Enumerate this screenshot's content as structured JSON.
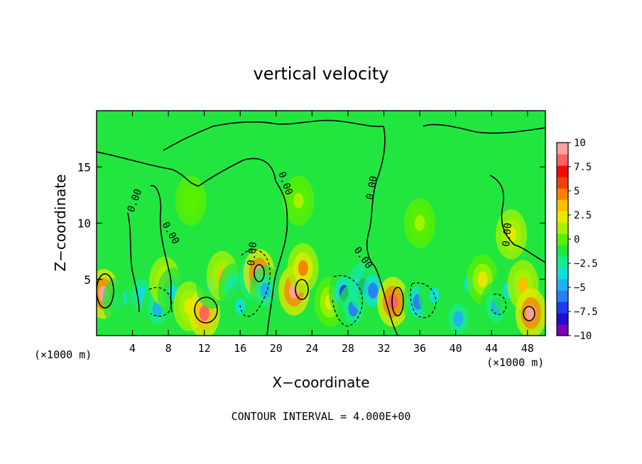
{
  "chart_data": {
    "type": "heatmap",
    "title": "vertical velocity",
    "xlabel": "X−coordinate",
    "ylabel": "Z−coordinate",
    "x_unit_left": "(×1000 m)",
    "x_unit_right": "(×1000 m)",
    "xlim": [
      0,
      50
    ],
    "ylim": [
      0,
      20
    ],
    "xticks": [
      4,
      8,
      12,
      16,
      20,
      24,
      28,
      32,
      36,
      40,
      44,
      48
    ],
    "yticks": [
      5,
      10,
      15
    ],
    "contour_interval_text": "CONTOUR INTERVAL = 4.000E+00",
    "contour_label": "0.00",
    "colorbar": {
      "ticks": [
        "10",
        "7.5",
        "5",
        "2.5",
        "0",
        "−2.5",
        "−5",
        "−7.5",
        "−10"
      ],
      "range": [
        -10,
        10
      ],
      "colors": [
        "#7a00b8",
        "#1f0ed0",
        "#1b3cf0",
        "#2a7ef5",
        "#20b2f0",
        "#10e0d8",
        "#16ec90",
        "#22e640",
        "#5af000",
        "#a8f200",
        "#e8e800",
        "#fcbf00",
        "#fa8000",
        "#f04010",
        "#f50a0a",
        "#ff6060",
        "#ffa0a0"
      ]
    },
    "cells": [
      {
        "x": 0.8,
        "z": 3.7,
        "w": 9.2
      },
      {
        "x": 2.4,
        "z": 3.0,
        "w": -3.5
      },
      {
        "x": 3.5,
        "z": 3.4,
        "w": -3.2
      },
      {
        "x": 5.0,
        "z": 3.6,
        "w": -4.0
      },
      {
        "x": 6.8,
        "z": 2.4,
        "w": -4.5
      },
      {
        "x": 7.6,
        "z": 4.8,
        "w": 3.0
      },
      {
        "x": 8.5,
        "z": 3.8,
        "w": -3.0
      },
      {
        "x": 10.3,
        "z": 2.6,
        "w": 2.5
      },
      {
        "x": 12.0,
        "z": 2.0,
        "w": 8.2
      },
      {
        "x": 12.8,
        "z": 4.6,
        "w": -3.5
      },
      {
        "x": 14.0,
        "z": 5.3,
        "w": 3.0
      },
      {
        "x": 15.3,
        "z": 4.2,
        "w": -4.0
      },
      {
        "x": 16.0,
        "z": 2.6,
        "w": -3.0
      },
      {
        "x": 17.7,
        "z": 5.2,
        "w": -9.0
      },
      {
        "x": 18.1,
        "z": 5.5,
        "w": 10.0
      },
      {
        "x": 18.8,
        "z": 4.0,
        "w": -5.0
      },
      {
        "x": 22.0,
        "z": 4.0,
        "w": 9.0
      },
      {
        "x": 23.0,
        "z": 6.0,
        "w": 5.0
      },
      {
        "x": 26.0,
        "z": 3.0,
        "w": 2.0
      },
      {
        "x": 27.6,
        "z": 3.8,
        "w": -7.0
      },
      {
        "x": 28.6,
        "z": 2.4,
        "w": -5.5
      },
      {
        "x": 29.7,
        "z": 4.4,
        "w": -7.5
      },
      {
        "x": 30.8,
        "z": 4.0,
        "w": -6.0
      },
      {
        "x": 33.0,
        "z": 3.0,
        "w": 8.8
      },
      {
        "x": 35.8,
        "z": 3.0,
        "w": -6.0
      },
      {
        "x": 37.6,
        "z": 3.6,
        "w": -3.0
      },
      {
        "x": 40.3,
        "z": 1.5,
        "w": -5.0
      },
      {
        "x": 41.5,
        "z": 4.6,
        "w": -3.0
      },
      {
        "x": 43.0,
        "z": 5.0,
        "w": 2.0
      },
      {
        "x": 44.5,
        "z": 2.6,
        "w": -4.5
      },
      {
        "x": 45.8,
        "z": 4.0,
        "w": -3.0
      },
      {
        "x": 47.5,
        "z": 4.5,
        "w": 3.0
      },
      {
        "x": 48.4,
        "z": 2.0,
        "w": 9.0
      },
      {
        "x": 46.2,
        "z": 9.0,
        "w": 2.5
      },
      {
        "x": 22.5,
        "z": 12.0,
        "w": 0.8
      },
      {
        "x": 10.5,
        "z": 12.0,
        "w": -0.5
      },
      {
        "x": 36.0,
        "z": 10.0,
        "w": 1.0
      }
    ]
  }
}
